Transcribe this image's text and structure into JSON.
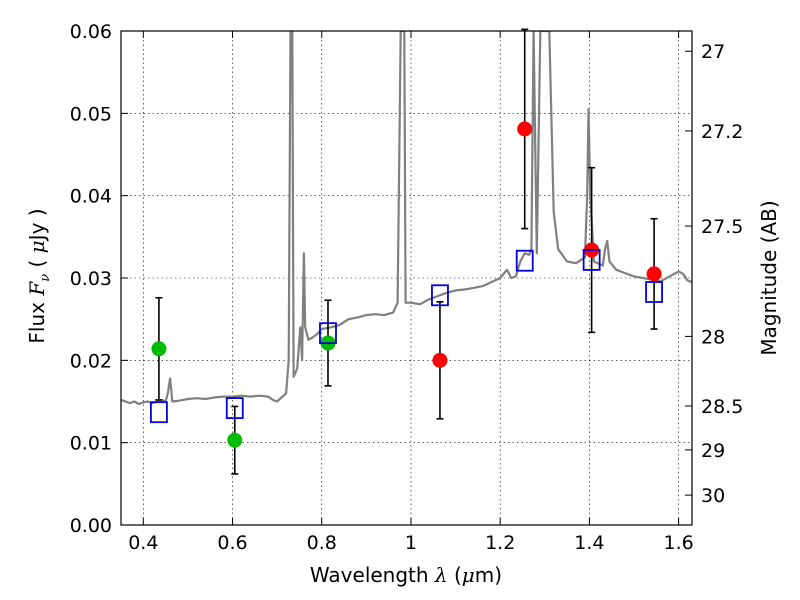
{
  "chart_data": {
    "type": "scatter",
    "title": "",
    "xlabel": {
      "pre": "Wavelength  ",
      "sym": "λ",
      "post": " (",
      "mu": "μ",
      "unit": "m)"
    },
    "ylabel": {
      "pre": "Flux  ",
      "sym": "F",
      "sub": "ν",
      "post": "  ( ",
      "mu": "μ",
      "unit": "Jy )"
    },
    "y2label": "Magnitude (AB)",
    "xlim": [
      0.35,
      1.63
    ],
    "ylim": [
      0.0,
      0.06
    ],
    "grid": true,
    "x_ticks": [
      {
        "v": 0.4,
        "label": "0.4"
      },
      {
        "v": 0.6,
        "label": "0.6"
      },
      {
        "v": 0.8,
        "label": "0.8"
      },
      {
        "v": 1.0,
        "label": "1"
      },
      {
        "v": 1.2,
        "label": "1.2"
      },
      {
        "v": 1.4,
        "label": "1.4"
      },
      {
        "v": 1.6,
        "label": "1.6"
      }
    ],
    "y_ticks": [
      {
        "v": 0.0,
        "label": "0.00"
      },
      {
        "v": 0.01,
        "label": "0.01"
      },
      {
        "v": 0.02,
        "label": "0.02"
      },
      {
        "v": 0.03,
        "label": "0.03"
      },
      {
        "v": 0.04,
        "label": "0.04"
      },
      {
        "v": 0.05,
        "label": "0.05"
      },
      {
        "v": 0.06,
        "label": "0.06"
      }
    ],
    "mag_ticks": [
      {
        "mag": 27,
        "label": "27"
      },
      {
        "mag": 27.2,
        "label": "27.2"
      },
      {
        "mag": 27.5,
        "label": "27.5"
      },
      {
        "mag": 28,
        "label": "28"
      },
      {
        "mag": 28.5,
        "label": "28.5"
      },
      {
        "mag": 29,
        "label": "29"
      },
      {
        "mag": 30,
        "label": "30"
      }
    ],
    "spectrum": {
      "color": "#808080",
      "points": [
        [
          0.35,
          0.0152
        ],
        [
          0.36,
          0.015
        ],
        [
          0.37,
          0.0148
        ],
        [
          0.38,
          0.015
        ],
        [
          0.39,
          0.0147
        ],
        [
          0.4,
          0.0149
        ],
        [
          0.41,
          0.015
        ],
        [
          0.42,
          0.0148
        ],
        [
          0.43,
          0.015
        ],
        [
          0.44,
          0.0152
        ],
        [
          0.45,
          0.015
        ],
        [
          0.455,
          0.016
        ],
        [
          0.46,
          0.0178
        ],
        [
          0.465,
          0.015
        ],
        [
          0.48,
          0.0151
        ],
        [
          0.5,
          0.0153
        ],
        [
          0.52,
          0.0154
        ],
        [
          0.54,
          0.0153
        ],
        [
          0.56,
          0.0155
        ],
        [
          0.58,
          0.0156
        ],
        [
          0.6,
          0.0156
        ],
        [
          0.62,
          0.0157
        ],
        [
          0.64,
          0.0156
        ],
        [
          0.66,
          0.0157
        ],
        [
          0.68,
          0.0156
        ],
        [
          0.69,
          0.0152
        ],
        [
          0.7,
          0.015
        ],
        [
          0.71,
          0.0155
        ],
        [
          0.72,
          0.016
        ],
        [
          0.726,
          0.02
        ],
        [
          0.73,
          0.06
        ],
        [
          0.734,
          0.06
        ],
        [
          0.737,
          0.018
        ],
        [
          0.745,
          0.019
        ],
        [
          0.752,
          0.024
        ],
        [
          0.756,
          0.02
        ],
        [
          0.76,
          0.033
        ],
        [
          0.763,
          0.024
        ],
        [
          0.77,
          0.0225
        ],
        [
          0.78,
          0.0228
        ],
        [
          0.79,
          0.0232
        ],
        [
          0.8,
          0.0238
        ],
        [
          0.82,
          0.024
        ],
        [
          0.84,
          0.0243
        ],
        [
          0.86,
          0.025
        ],
        [
          0.88,
          0.0252
        ],
        [
          0.9,
          0.0255
        ],
        [
          0.92,
          0.0256
        ],
        [
          0.94,
          0.0255
        ],
        [
          0.96,
          0.0258
        ],
        [
          0.97,
          0.027
        ],
        [
          0.977,
          0.06
        ],
        [
          0.985,
          0.06
        ],
        [
          0.988,
          0.027
        ],
        [
          1.0,
          0.027
        ],
        [
          1.02,
          0.0268
        ],
        [
          1.04,
          0.0274
        ],
        [
          1.06,
          0.0278
        ],
        [
          1.08,
          0.0282
        ],
        [
          1.1,
          0.0285
        ],
        [
          1.12,
          0.0286
        ],
        [
          1.14,
          0.0288
        ],
        [
          1.16,
          0.029
        ],
        [
          1.18,
          0.0295
        ],
        [
          1.2,
          0.03
        ],
        [
          1.215,
          0.031
        ],
        [
          1.225,
          0.03
        ],
        [
          1.235,
          0.0302
        ],
        [
          1.245,
          0.032
        ],
        [
          1.255,
          0.033
        ],
        [
          1.265,
          0.0328
        ],
        [
          1.27,
          0.0335
        ],
        [
          1.275,
          0.06
        ],
        [
          1.282,
          0.033
        ],
        [
          1.29,
          0.06
        ],
        [
          1.3,
          0.06
        ],
        [
          1.31,
          0.06
        ],
        [
          1.32,
          0.038
        ],
        [
          1.33,
          0.0335
        ],
        [
          1.35,
          0.032
        ],
        [
          1.37,
          0.0318
        ],
        [
          1.39,
          0.0325
        ],
        [
          1.395,
          0.04
        ],
        [
          1.398,
          0.0505
        ],
        [
          1.402,
          0.04
        ],
        [
          1.41,
          0.032
        ],
        [
          1.43,
          0.0315
        ],
        [
          1.435,
          0.0335
        ],
        [
          1.44,
          0.0345
        ],
        [
          1.445,
          0.032
        ],
        [
          1.46,
          0.031
        ],
        [
          1.48,
          0.0306
        ],
        [
          1.5,
          0.0302
        ],
        [
          1.52,
          0.03
        ],
        [
          1.54,
          0.0298
        ],
        [
          1.56,
          0.0296
        ],
        [
          1.58,
          0.0302
        ],
        [
          1.6,
          0.0308
        ],
        [
          1.61,
          0.0305
        ],
        [
          1.62,
          0.0297
        ],
        [
          1.63,
          0.0295
        ]
      ]
    },
    "series": [
      {
        "marker": "circle",
        "color": "#00bb00",
        "points": [
          {
            "x": 0.435,
            "y": 0.0214,
            "err": 0.0062
          },
          {
            "x": 0.605,
            "y": 0.0103,
            "err": 0.0041
          },
          {
            "x": 0.814,
            "y": 0.0221,
            "err": 0.0052
          }
        ]
      },
      {
        "marker": "circle",
        "color": "#ff0000",
        "points": [
          {
            "x": 1.065,
            "y": 0.02,
            "err": 0.0071
          },
          {
            "x": 1.255,
            "y": 0.0481,
            "err": 0.0121
          },
          {
            "x": 1.405,
            "y": 0.0334,
            "err": 0.01
          },
          {
            "x": 1.545,
            "y": 0.0305,
            "err": 0.0067
          }
        ]
      },
      {
        "marker": "square",
        "color": "#0000dd",
        "points": [
          {
            "x": 0.435,
            "y": 0.0137
          },
          {
            "x": 0.605,
            "y": 0.0142
          },
          {
            "x": 0.814,
            "y": 0.0233
          },
          {
            "x": 1.065,
            "y": 0.0279
          },
          {
            "x": 1.255,
            "y": 0.0321
          },
          {
            "x": 1.405,
            "y": 0.0322
          },
          {
            "x": 1.545,
            "y": 0.0283
          }
        ]
      }
    ]
  }
}
